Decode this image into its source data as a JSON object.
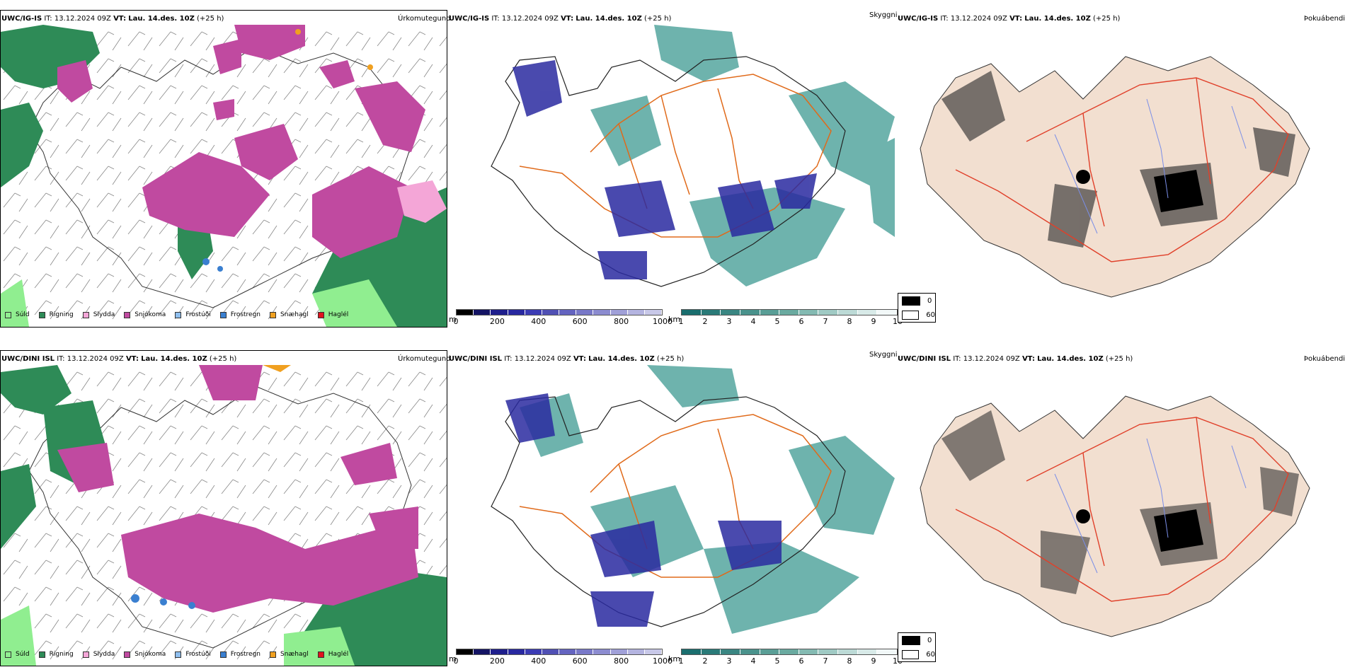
{
  "panels": [
    {
      "model": "UWC/IG-IS",
      "it_label": "IT:",
      "it": "13.12.2024 09Z",
      "vt_label": "VT:",
      "vt": "Lau. 14.des. 10Z",
      "lead": "(+25 h)",
      "product": "Úrkomutegund"
    },
    {
      "model": "UWC/IG-IS",
      "it_label": "IT:",
      "it": "13.12.2024 09Z",
      "vt_label": "VT:",
      "vt": "Lau. 14.des. 10Z",
      "lead": "(+25 h)",
      "product": "Skyggni"
    },
    {
      "model": "UWC/IG-IS",
      "it_label": "IT:",
      "it": "13.12.2024 09Z",
      "vt_label": "VT:",
      "vt": "Lau. 14.des. 10Z",
      "lead": "(+25 h)",
      "product": "Þokuábendi"
    },
    {
      "model": "UWC/DINI ISL",
      "it_label": "IT:",
      "it": "13.12.2024 09Z",
      "vt_label": "VT:",
      "vt": "Lau. 14.des. 10Z",
      "lead": "(+25 h)",
      "product": "Úrkomutegund"
    },
    {
      "model": "UWC/DINI ISL",
      "it_label": "IT:",
      "it": "13.12.2024 09Z",
      "vt_label": "VT:",
      "vt": "Lau. 14.des. 10Z",
      "lead": "(+25 h)",
      "product": "Skyggni"
    },
    {
      "model": "UWC/DINI ISL",
      "it_label": "IT:",
      "it": "13.12.2024 09Z",
      "vt_label": "VT:",
      "vt": "Lau. 14.des. 10Z",
      "lead": "(+25 h)",
      "product": "Þokuábendi"
    }
  ],
  "precip_legend": [
    {
      "label": "Súld",
      "color": "#90ee90"
    },
    {
      "label": "Rigning",
      "color": "#2e8b57"
    },
    {
      "label": "Slydda",
      "color": "#f4a6d7"
    },
    {
      "label": "Snjókoma",
      "color": "#c04aa0"
    },
    {
      "label": "Frostúði",
      "color": "#8fbfef"
    },
    {
      "label": "Frostregn",
      "color": "#3a7fd0"
    },
    {
      "label": "Snæhagl",
      "color": "#f0a020"
    },
    {
      "label": "Haglél",
      "color": "#e0141e"
    }
  ],
  "elev_bar": {
    "unit": "m",
    "ticks": [
      "0",
      "200",
      "400",
      "600",
      "800",
      "1000"
    ],
    "colors": [
      "#000000",
      "#141464",
      "#1e1e8c",
      "#2828a0",
      "#3c3cb4",
      "#5050b4",
      "#6464c0",
      "#7878c8",
      "#8c8cd0",
      "#a0a0d8",
      "#b4b4e0",
      "#c8c8e8"
    ]
  },
  "vis_bar": {
    "unit": "km",
    "ticks": [
      "1",
      "2",
      "3",
      "4",
      "5",
      "6",
      "7",
      "8",
      "9",
      "10"
    ],
    "colors": [
      "#1a6e6e",
      "#2a7a78",
      "#3a8682",
      "#4a928c",
      "#5a9e96",
      "#6aaaa0",
      "#84bab2",
      "#a0cac4",
      "#bcdad6",
      "#d8eae8",
      "#f2f8f8"
    ]
  },
  "fog_legend": [
    {
      "label": "0",
      "color": "#000000"
    },
    {
      "label": "60",
      "color": "#ffffff"
    }
  ],
  "colors": {
    "land_fog": "#f2dfd0",
    "roads": "#e06a1a",
    "roads_fog": "#e0402a",
    "rivers": "#7a8ee8",
    "rain": "#2e8b57",
    "snow": "#c04aa0",
    "drizzle": "#90ee90",
    "vis_teal": "#3e9a92",
    "elev_blue": "#2a2aa0"
  }
}
